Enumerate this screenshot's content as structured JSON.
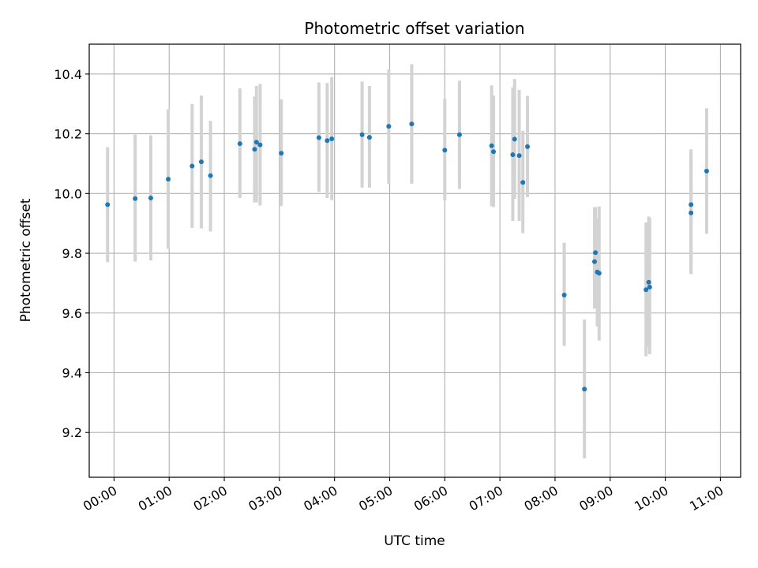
{
  "chart_data": {
    "type": "scatter",
    "title": "Photometric offset variation",
    "xlabel": "UTC time",
    "ylabel": "Photometric offset",
    "xlim": [
      "2000-01-01T23:33",
      "2000-01-02T11:22"
    ],
    "ylim": [
      9.05,
      10.5
    ],
    "xticks": [
      {
        "t": "2000-01-02T00:00",
        "label": "00:00"
      },
      {
        "t": "2000-01-02T01:00",
        "label": "01:00"
      },
      {
        "t": "2000-01-02T02:00",
        "label": "02:00"
      },
      {
        "t": "2000-01-02T03:00",
        "label": "03:00"
      },
      {
        "t": "2000-01-02T04:00",
        "label": "04:00"
      },
      {
        "t": "2000-01-02T05:00",
        "label": "05:00"
      },
      {
        "t": "2000-01-02T06:00",
        "label": "06:00"
      },
      {
        "t": "2000-01-02T07:00",
        "label": "07:00"
      },
      {
        "t": "2000-01-02T08:00",
        "label": "08:00"
      },
      {
        "t": "2000-01-02T09:00",
        "label": "09:00"
      },
      {
        "t": "2000-01-02T10:00",
        "label": "10:00"
      },
      {
        "t": "2000-01-02T11:00",
        "label": "11:00"
      }
    ],
    "yticks": [
      9.2,
      9.4,
      9.6,
      9.8,
      10.0,
      10.2,
      10.4
    ],
    "ytick_labels": [
      "9.2",
      "9.4",
      "9.6",
      "9.8",
      "10.0",
      "10.2",
      "10.4"
    ],
    "grid": true,
    "colors": {
      "point": "#1f77b4",
      "errorbar": "#d3d3d3",
      "grid": "#b0b0b0"
    },
    "points": [
      {
        "t": "2000-01-01T23:53",
        "y": 9.963,
        "ylo": 9.77,
        "yhi": 10.155
      },
      {
        "t": "2000-01-02T00:23",
        "y": 9.983,
        "ylo": 9.772,
        "yhi": 10.197
      },
      {
        "t": "2000-01-02T00:40",
        "y": 9.985,
        "ylo": 9.776,
        "yhi": 10.195
      },
      {
        "t": "2000-01-02T00:59",
        "y": 10.048,
        "ylo": 9.815,
        "yhi": 10.282
      },
      {
        "t": "2000-01-02T01:25",
        "y": 10.092,
        "ylo": 9.885,
        "yhi": 10.3
      },
      {
        "t": "2000-01-02T01:35",
        "y": 10.106,
        "ylo": 9.883,
        "yhi": 10.328
      },
      {
        "t": "2000-01-02T01:45",
        "y": 10.06,
        "ylo": 9.873,
        "yhi": 10.243
      },
      {
        "t": "2000-01-02T02:17",
        "y": 10.167,
        "ylo": 9.985,
        "yhi": 10.352
      },
      {
        "t": "2000-01-02T02:33",
        "y": 10.148,
        "ylo": 9.97,
        "yhi": 10.325
      },
      {
        "t": "2000-01-02T02:35",
        "y": 10.172,
        "ylo": 9.97,
        "yhi": 10.36
      },
      {
        "t": "2000-01-02T02:39",
        "y": 10.163,
        "ylo": 9.96,
        "yhi": 10.367
      },
      {
        "t": "2000-01-02T03:02",
        "y": 10.135,
        "ylo": 9.958,
        "yhi": 10.315
      },
      {
        "t": "2000-01-02T03:43",
        "y": 10.187,
        "ylo": 10.005,
        "yhi": 10.372
      },
      {
        "t": "2000-01-02T03:52",
        "y": 10.177,
        "ylo": 9.985,
        "yhi": 10.37
      },
      {
        "t": "2000-01-02T03:57",
        "y": 10.183,
        "ylo": 9.978,
        "yhi": 10.39
      },
      {
        "t": "2000-01-02T04:30",
        "y": 10.197,
        "ylo": 10.02,
        "yhi": 10.375
      },
      {
        "t": "2000-01-02T04:38",
        "y": 10.188,
        "ylo": 10.02,
        "yhi": 10.36
      },
      {
        "t": "2000-01-02T04:59",
        "y": 10.225,
        "ylo": 10.033,
        "yhi": 10.415
      },
      {
        "t": "2000-01-02T05:24",
        "y": 10.233,
        "ylo": 10.033,
        "yhi": 10.433
      },
      {
        "t": "2000-01-02T06:00",
        "y": 10.145,
        "ylo": 9.977,
        "yhi": 10.317
      },
      {
        "t": "2000-01-02T06:16",
        "y": 10.197,
        "ylo": 10.015,
        "yhi": 10.378
      },
      {
        "t": "2000-01-02T06:51",
        "y": 10.16,
        "ylo": 9.958,
        "yhi": 10.362
      },
      {
        "t": "2000-01-02T06:53",
        "y": 10.14,
        "ylo": 9.955,
        "yhi": 10.328
      },
      {
        "t": "2000-01-02T07:14",
        "y": 10.13,
        "ylo": 9.908,
        "yhi": 10.355
      },
      {
        "t": "2000-01-02T07:16",
        "y": 10.182,
        "ylo": 9.982,
        "yhi": 10.383
      },
      {
        "t": "2000-01-02T07:21",
        "y": 10.127,
        "ylo": 9.908,
        "yhi": 10.347
      },
      {
        "t": "2000-01-02T07:25",
        "y": 10.037,
        "ylo": 9.867,
        "yhi": 10.21
      },
      {
        "t": "2000-01-02T07:30",
        "y": 10.157,
        "ylo": 9.988,
        "yhi": 10.327
      },
      {
        "t": "2000-01-02T08:10",
        "y": 9.66,
        "ylo": 9.49,
        "yhi": 9.835
      },
      {
        "t": "2000-01-02T08:32",
        "y": 9.345,
        "ylo": 9.113,
        "yhi": 9.578
      },
      {
        "t": "2000-01-02T08:43",
        "y": 9.772,
        "ylo": 9.615,
        "yhi": 9.953
      },
      {
        "t": "2000-01-02T08:44",
        "y": 9.802,
        "ylo": 9.643,
        "yhi": 9.955
      },
      {
        "t": "2000-01-02T08:46",
        "y": 9.737,
        "ylo": 9.555,
        "yhi": 9.917
      },
      {
        "t": "2000-01-02T08:48",
        "y": 9.733,
        "ylo": 9.508,
        "yhi": 9.957
      },
      {
        "t": "2000-01-02T09:39",
        "y": 9.678,
        "ylo": 9.455,
        "yhi": 9.903
      },
      {
        "t": "2000-01-02T09:42",
        "y": 9.703,
        "ylo": 9.485,
        "yhi": 9.923
      },
      {
        "t": "2000-01-02T09:43",
        "y": 9.687,
        "ylo": 9.462,
        "yhi": 9.917
      },
      {
        "t": "2000-01-02T10:28",
        "y": 9.963,
        "ylo": 9.73,
        "yhi": 10.148
      },
      {
        "t": "2000-01-02T10:28",
        "y": 9.935,
        "ylo": 9.73,
        "yhi": 10.14
      },
      {
        "t": "2000-01-02T10:45",
        "y": 10.075,
        "ylo": 9.865,
        "yhi": 10.285
      }
    ]
  }
}
